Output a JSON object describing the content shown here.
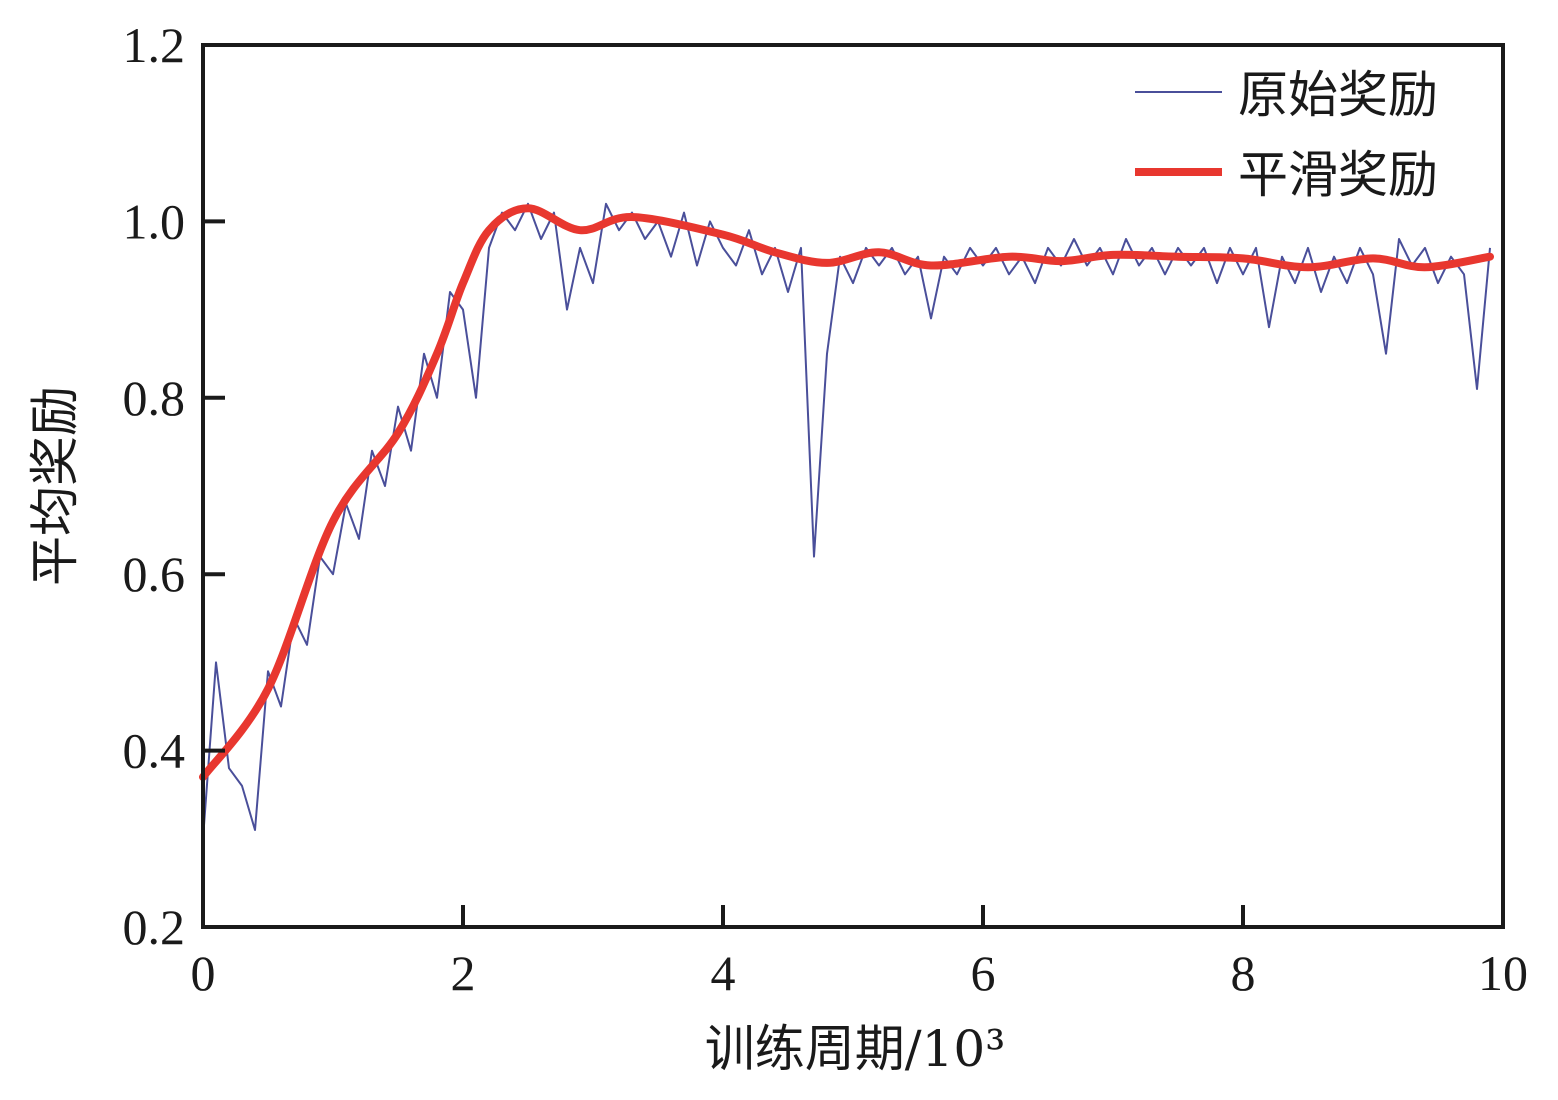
{
  "chart_data": {
    "type": "line",
    "title": "",
    "xlabel": "训练周期/10³",
    "ylabel": "平均奖励",
    "xlim": [
      0,
      10
    ],
    "ylim": [
      0.2,
      1.2
    ],
    "xticks": [
      "0",
      "2",
      "4",
      "6",
      "8",
      "10"
    ],
    "yticks": [
      "0.2",
      "0.4",
      "0.6",
      "0.8",
      "1.0",
      "1.2"
    ],
    "grid": false,
    "legend_position": "top-right",
    "colors": {
      "raw": "#4a4f9a",
      "smooth": "#e8372f",
      "axis": "#1a1a1a"
    },
    "series": [
      {
        "name": "原始奖励",
        "x_start": 0,
        "x_step": 0.1,
        "values": [
          0.3,
          0.5,
          0.38,
          0.36,
          0.31,
          0.49,
          0.45,
          0.55,
          0.52,
          0.62,
          0.6,
          0.68,
          0.64,
          0.74,
          0.7,
          0.79,
          0.74,
          0.85,
          0.8,
          0.92,
          0.9,
          0.8,
          0.97,
          1.01,
          0.99,
          1.02,
          0.98,
          1.01,
          0.9,
          0.97,
          0.93,
          1.02,
          0.99,
          1.01,
          0.98,
          1.0,
          0.96,
          1.01,
          0.95,
          1.0,
          0.97,
          0.95,
          0.99,
          0.94,
          0.97,
          0.92,
          0.97,
          0.62,
          0.85,
          0.96,
          0.93,
          0.97,
          0.95,
          0.97,
          0.94,
          0.96,
          0.89,
          0.96,
          0.94,
          0.97,
          0.95,
          0.97,
          0.94,
          0.96,
          0.93,
          0.97,
          0.95,
          0.98,
          0.95,
          0.97,
          0.94,
          0.98,
          0.95,
          0.97,
          0.94,
          0.97,
          0.95,
          0.97,
          0.93,
          0.97,
          0.94,
          0.97,
          0.88,
          0.96,
          0.93,
          0.97,
          0.92,
          0.96,
          0.93,
          0.97,
          0.94,
          0.85,
          0.98,
          0.95,
          0.97,
          0.93,
          0.96,
          0.94,
          0.81,
          0.97
        ]
      },
      {
        "name": "平滑奖励",
        "x": [
          0,
          0.5,
          1.0,
          1.5,
          1.8,
          2.0,
          2.2,
          2.5,
          2.9,
          3.3,
          4.0,
          4.4,
          4.8,
          5.2,
          5.6,
          6.2,
          6.6,
          7.0,
          7.5,
          8.0,
          8.5,
          9.0,
          9.4,
          9.9
        ],
        "values": [
          0.37,
          0.47,
          0.66,
          0.76,
          0.85,
          0.93,
          0.99,
          1.015,
          0.99,
          1.005,
          0.985,
          0.965,
          0.953,
          0.965,
          0.95,
          0.96,
          0.955,
          0.962,
          0.96,
          0.958,
          0.948,
          0.958,
          0.948,
          0.96
        ]
      }
    ]
  }
}
